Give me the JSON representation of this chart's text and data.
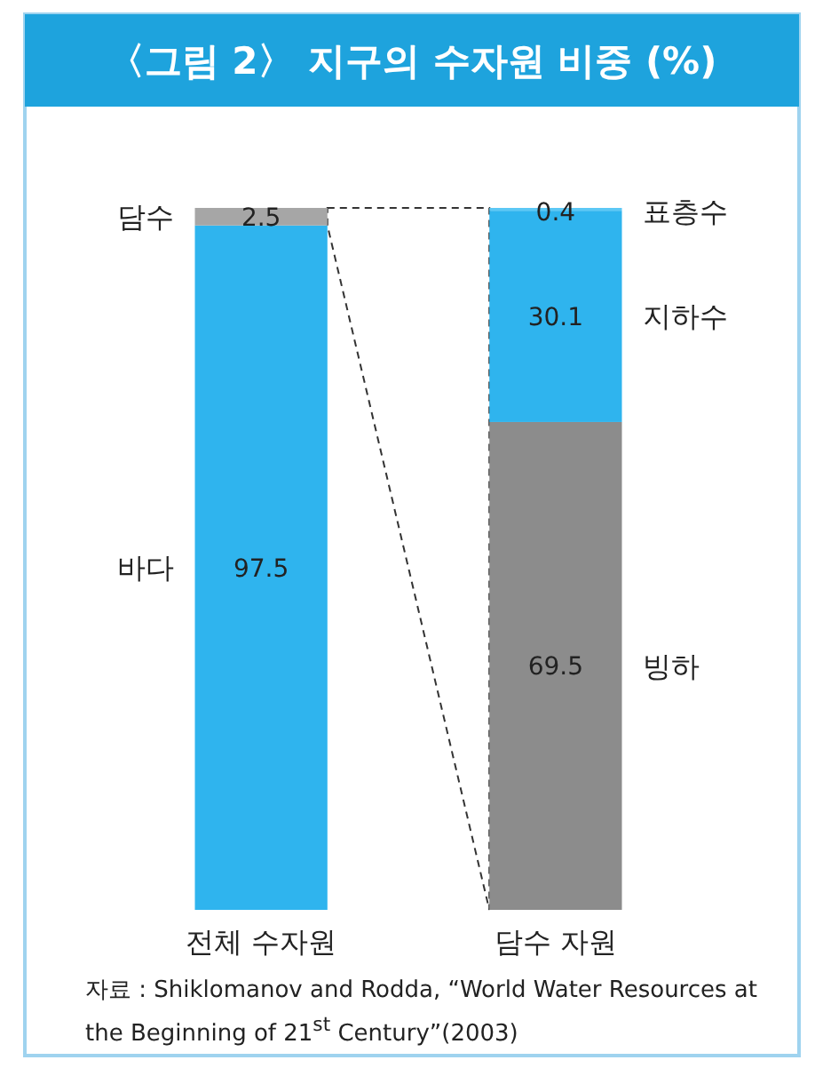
{
  "chart_data": {
    "type": "bar",
    "title": "〈그림 2〉 지구의 수자원 비중 (%)",
    "categories": [
      "전체 수자원",
      "담수 자원"
    ],
    "stacked": true,
    "data_labels": true,
    "series": [
      {
        "name": "바다",
        "color": "#2fb4ee",
        "values": [
          97.5,
          null
        ]
      },
      {
        "name": "빙하",
        "color": "#8c8c8c",
        "values": [
          null,
          69.5
        ]
      },
      {
        "name": "지하수",
        "color": "#2fb4ee",
        "values": [
          null,
          30.1
        ]
      },
      {
        "name": "담수",
        "color": "#a6a6a6",
        "values": [
          2.5,
          null
        ]
      },
      {
        "name": "표층수",
        "color": "#5cc8f5",
        "values": [
          null,
          0.4
        ]
      }
    ],
    "annotations": [
      "자료 : Shiklomanov and Rodda, “World Water Resources at the Beginning of 21$^{st}$ Century”(2003)"
    ]
  }
}
